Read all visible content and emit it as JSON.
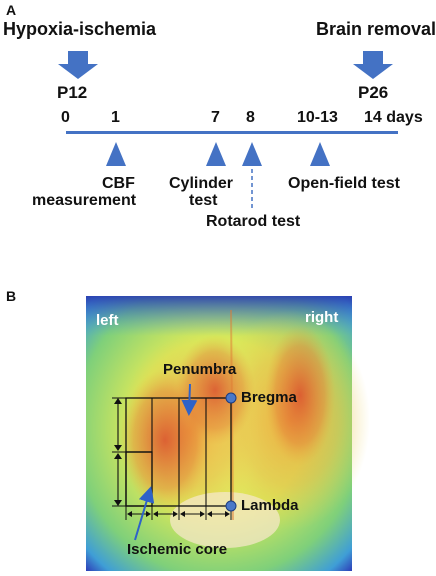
{
  "panel_a": {
    "label": "A",
    "start_event": "Hypoxia-ischemia",
    "end_event": "Brain removal",
    "start_day_label": "P12",
    "end_day_label": "P26",
    "day_ticks": [
      "0",
      "1",
      "7",
      "8",
      "10-13",
      "14 days"
    ],
    "tests": {
      "cbf_line1": "CBF",
      "cbf_line2": "measurement",
      "cylinder_line1": "Cylinder",
      "cylinder_line2": "test",
      "rotarod": "Rotarod test",
      "openfield": "Open-field test"
    },
    "colors": {
      "arrow": "#4472c4",
      "timeline": "#4472c4"
    }
  },
  "panel_b": {
    "label": "B",
    "left": "left",
    "right": "right",
    "penumbra": "Penumbra",
    "bregma": "Bregma",
    "lambda": "Lambda",
    "ischemic_core": "Ischemic core",
    "colors": {
      "annotation_arrow": "#2e62c9",
      "landmark_dot": "#4a78c8"
    }
  }
}
